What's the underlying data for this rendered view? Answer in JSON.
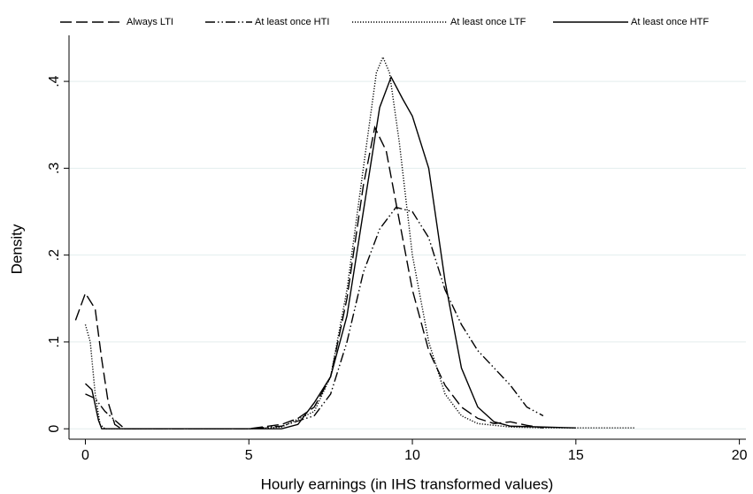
{
  "chart_data": {
    "type": "line",
    "xlabel": "Hourly earnings (in IHS transformed values)",
    "ylabel": "Density",
    "xlim": [
      -0.5,
      20.2
    ],
    "ylim": [
      -0.012,
      0.453
    ],
    "xticks": [
      0,
      5,
      10,
      15,
      20
    ],
    "yticks": [
      0,
      {
        "value": 0.1,
        "label": ".1"
      },
      {
        "value": 0.2,
        "label": ".2"
      },
      {
        "value": 0.3,
        "label": ".3"
      },
      {
        "value": 0.4,
        "label": ".4"
      }
    ],
    "grid": true,
    "legend": "top",
    "series": [
      {
        "name": "Always LTI",
        "color": "#000000",
        "style": "longdash",
        "x": [
          -0.3,
          0,
          0.3,
          0.5,
          0.7,
          0.9,
          1.1,
          5,
          6,
          6.5,
          7,
          7.5,
          8,
          8.5,
          8.85,
          9.2,
          9.6,
          10,
          10.5,
          11,
          11.5,
          12,
          12.5,
          13,
          13.5,
          14
        ],
        "values": [
          0.125,
          0.156,
          0.138,
          0.08,
          0.03,
          0.005,
          0,
          0,
          0.005,
          0.012,
          0.025,
          0.06,
          0.15,
          0.28,
          0.347,
          0.32,
          0.24,
          0.16,
          0.09,
          0.05,
          0.025,
          0.012,
          0.006,
          0.008,
          0.004,
          0.001
        ]
      },
      {
        "name": "At least once HTI",
        "color": "#000000",
        "style": "dashdot",
        "x": [
          0,
          0.3,
          0.6,
          0.9,
          1.2,
          5,
          6,
          7,
          7.5,
          8,
          8.5,
          9,
          9.5,
          10,
          10.5,
          11,
          11.5,
          12,
          12.5,
          13,
          13.5,
          14
        ],
        "values": [
          0.04,
          0.035,
          0.02,
          0.01,
          0,
          0,
          0.003,
          0.015,
          0.04,
          0.1,
          0.18,
          0.23,
          0.255,
          0.25,
          0.22,
          0.16,
          0.12,
          0.09,
          0.07,
          0.05,
          0.025,
          0.015
        ]
      },
      {
        "name": "At least once LTF",
        "color": "#000000",
        "style": "dot",
        "x": [
          0,
          0.15,
          0.3,
          0.45,
          0.6,
          5,
          6,
          7,
          7.5,
          8,
          8.5,
          8.9,
          9.1,
          9.3,
          9.6,
          10,
          10.5,
          11,
          11.5,
          12,
          13,
          14,
          15,
          16,
          16.8
        ],
        "values": [
          0.12,
          0.1,
          0.04,
          0.005,
          0,
          0,
          0.002,
          0.02,
          0.06,
          0.16,
          0.3,
          0.41,
          0.428,
          0.41,
          0.33,
          0.2,
          0.1,
          0.04,
          0.015,
          0.006,
          0.002,
          0.001,
          0.001,
          0.001,
          0.001
        ]
      },
      {
        "name": "At least once HTF",
        "color": "#000000",
        "style": "solid",
        "x": [
          0,
          0.2,
          0.4,
          0.5,
          6,
          6.5,
          7,
          7.5,
          8,
          8.5,
          9,
          9.35,
          9.7,
          10,
          10.5,
          11,
          11.5,
          12,
          12.5,
          13,
          14,
          15
        ],
        "values": [
          0.052,
          0.045,
          0.01,
          0,
          0,
          0.005,
          0.03,
          0.06,
          0.13,
          0.25,
          0.37,
          0.405,
          0.38,
          0.36,
          0.3,
          0.17,
          0.07,
          0.025,
          0.008,
          0.003,
          0.002,
          0.001
        ]
      }
    ]
  }
}
